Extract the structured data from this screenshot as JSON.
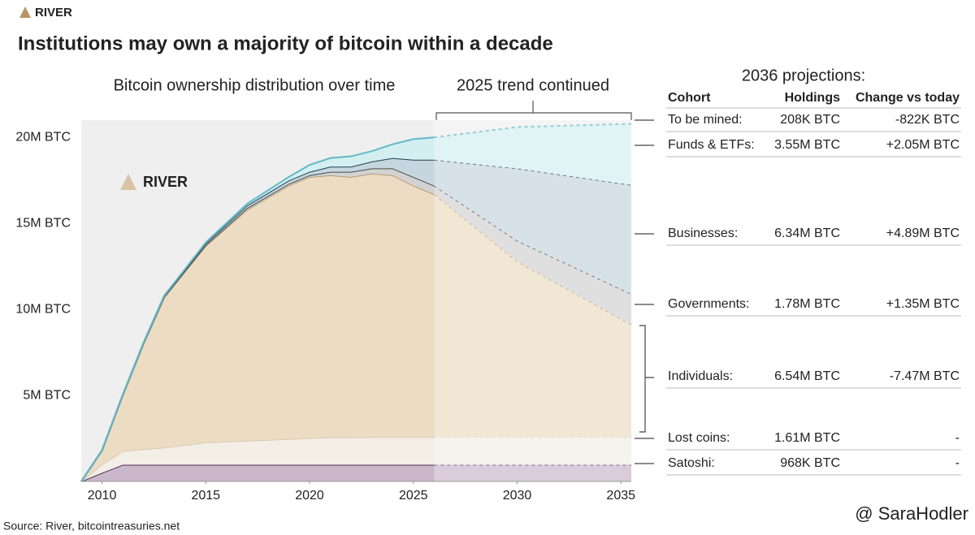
{
  "header": {
    "logo": "RIVER",
    "title": "Institutions may own a majority of bitcoin within a decade"
  },
  "chart_data": {
    "type": "stacked_area",
    "subtitle": "Bitcoin ownership distribution over time",
    "annotation": "2025 trend continued",
    "watermark": "RIVER",
    "x": [
      2009,
      2010,
      2011,
      2012,
      2013,
      2015,
      2017,
      2019,
      2020,
      2021,
      2022,
      2023,
      2024,
      2025,
      2026,
      2030,
      2035.5
    ],
    "xlim": [
      2009,
      2035.5
    ],
    "xticks": [
      2010,
      2015,
      2020,
      2025,
      2030,
      2035
    ],
    "ylim": [
      0,
      21000000
    ],
    "yticks": [
      {
        "value": 5000000,
        "label": "5M BTC"
      },
      {
        "value": 10000000,
        "label": "10M BTC"
      },
      {
        "value": 15000000,
        "label": "15M BTC"
      },
      {
        "value": 20000000,
        "label": "20M BTC"
      }
    ],
    "projection_start": 2026,
    "series": [
      {
        "color": "#cbb7cc",
        "line_color": "#4d2f4f",
        "values": [
          0,
          500000,
          968000,
          968000,
          968000,
          968000,
          968000,
          968000,
          968000,
          968000,
          968000,
          968000,
          968000,
          968000,
          968000,
          968000,
          968000
        ]
      },
      {
        "color": "#f3eee6",
        "line_color": "#d9cbb5",
        "values": [
          0,
          500000,
          800000,
          900000,
          1000000,
          1300000,
          1400000,
          1500000,
          1550000,
          1600000,
          1600000,
          1610000,
          1610000,
          1610000,
          1610000,
          1610000,
          1610000
        ]
      },
      {
        "color": "#ecdcc3",
        "line_color": "#b39d78",
        "values": [
          0,
          800000,
          3230000,
          6130000,
          8730000,
          11430000,
          13430000,
          14730000,
          15180000,
          15230000,
          15130000,
          15320000,
          15220000,
          14620000,
          14120000,
          10220000,
          6540000
        ]
      },
      {
        "color": "#d2d2d2",
        "line_color": "#4a4a4a",
        "values": [
          0,
          0,
          20000,
          30000,
          50000,
          50000,
          100000,
          100000,
          100000,
          200000,
          300000,
          300000,
          400000,
          500000,
          500000,
          1200000,
          1780000
        ]
      },
      {
        "color": "#c6d6de",
        "line_color": "#1e3f55",
        "values": [
          0,
          0,
          20000,
          30000,
          50000,
          100000,
          150000,
          200000,
          200000,
          300000,
          300000,
          400000,
          600000,
          1000000,
          1500000,
          4200000,
          6340000
        ]
      },
      {
        "color": "#d3eff1",
        "line_color": "#62b9c6",
        "values": [
          0,
          0,
          0,
          0,
          0,
          50000,
          100000,
          200000,
          400000,
          500000,
          600000,
          600000,
          800000,
          1200000,
          1300000,
          2400000,
          3550000
        ]
      }
    ]
  },
  "table": {
    "title": "2036 projections:",
    "columns": [
      "Cohort",
      "Holdings",
      "Change vs today"
    ],
    "rows": [
      [
        "To be mined:",
        "208K BTC",
        "-822K BTC"
      ],
      [
        "Funds & ETFs:",
        "3.55M BTC",
        "+2.05M BTC"
      ],
      [
        "Businesses:",
        "6.34M BTC",
        "+4.89M BTC"
      ],
      [
        "Governments:",
        "1.78M BTC",
        "+1.35M BTC"
      ],
      [
        "Individuals:",
        "6.54M BTC",
        "-7.47M BTC"
      ],
      [
        "Lost coins:",
        "1.61M BTC",
        "-"
      ],
      [
        "Satoshi:",
        "968K BTC",
        "-"
      ]
    ]
  },
  "source": "Source: River, bitcointreasuries.net",
  "credit": "@ SaraHodler"
}
